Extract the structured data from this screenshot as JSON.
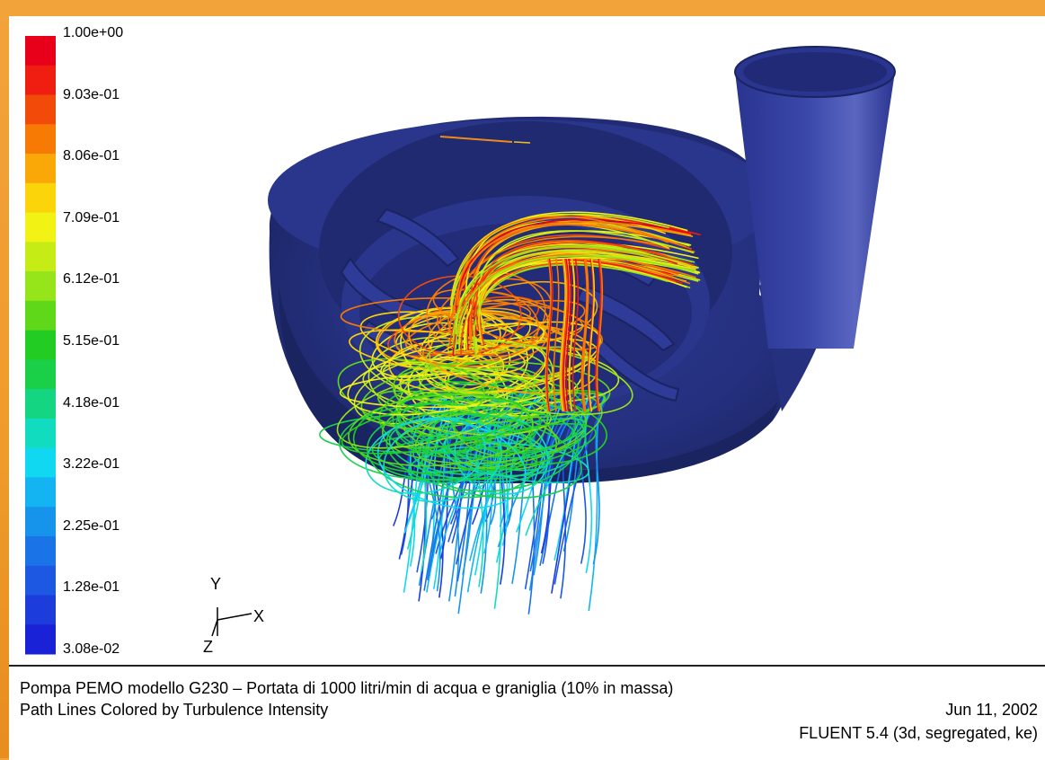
{
  "legend": {
    "labels": [
      "1.00e+00",
      "9.03e-01",
      "8.06e-01",
      "7.09e-01",
      "6.12e-01",
      "5.15e-01",
      "4.18e-01",
      "3.22e-01",
      "2.25e-01",
      "1.28e-01",
      "3.08e-02"
    ],
    "colors": [
      "#e8001a",
      "#f01e10",
      "#f24a08",
      "#f67a04",
      "#f9a808",
      "#fcd40a",
      "#f2f214",
      "#c6ec16",
      "#96e41a",
      "#5ed818",
      "#22cc22",
      "#1ad048",
      "#14d682",
      "#12dcc0",
      "#10d8f0",
      "#14b4f2",
      "#1694ec",
      "#1a74e8",
      "#1c58e2",
      "#1c3cdc",
      "#1a22d8"
    ]
  },
  "axes": {
    "y": "Y",
    "x": "X",
    "z": "Z"
  },
  "caption": {
    "line1": "Pompa PEMO modello G230 – Portata di 1000 litri/min di acqua e graniglia (10% in massa)",
    "line2": "Path Lines Colored by Turbulence Intensity",
    "date": "Jun 11, 2002",
    "software": "FLUENT 5.4 (3d, segregated, ke)"
  },
  "model_colors": {
    "volute": "#25307f",
    "volute_dark": "#1a2460",
    "volute_light": "#3340a0"
  }
}
